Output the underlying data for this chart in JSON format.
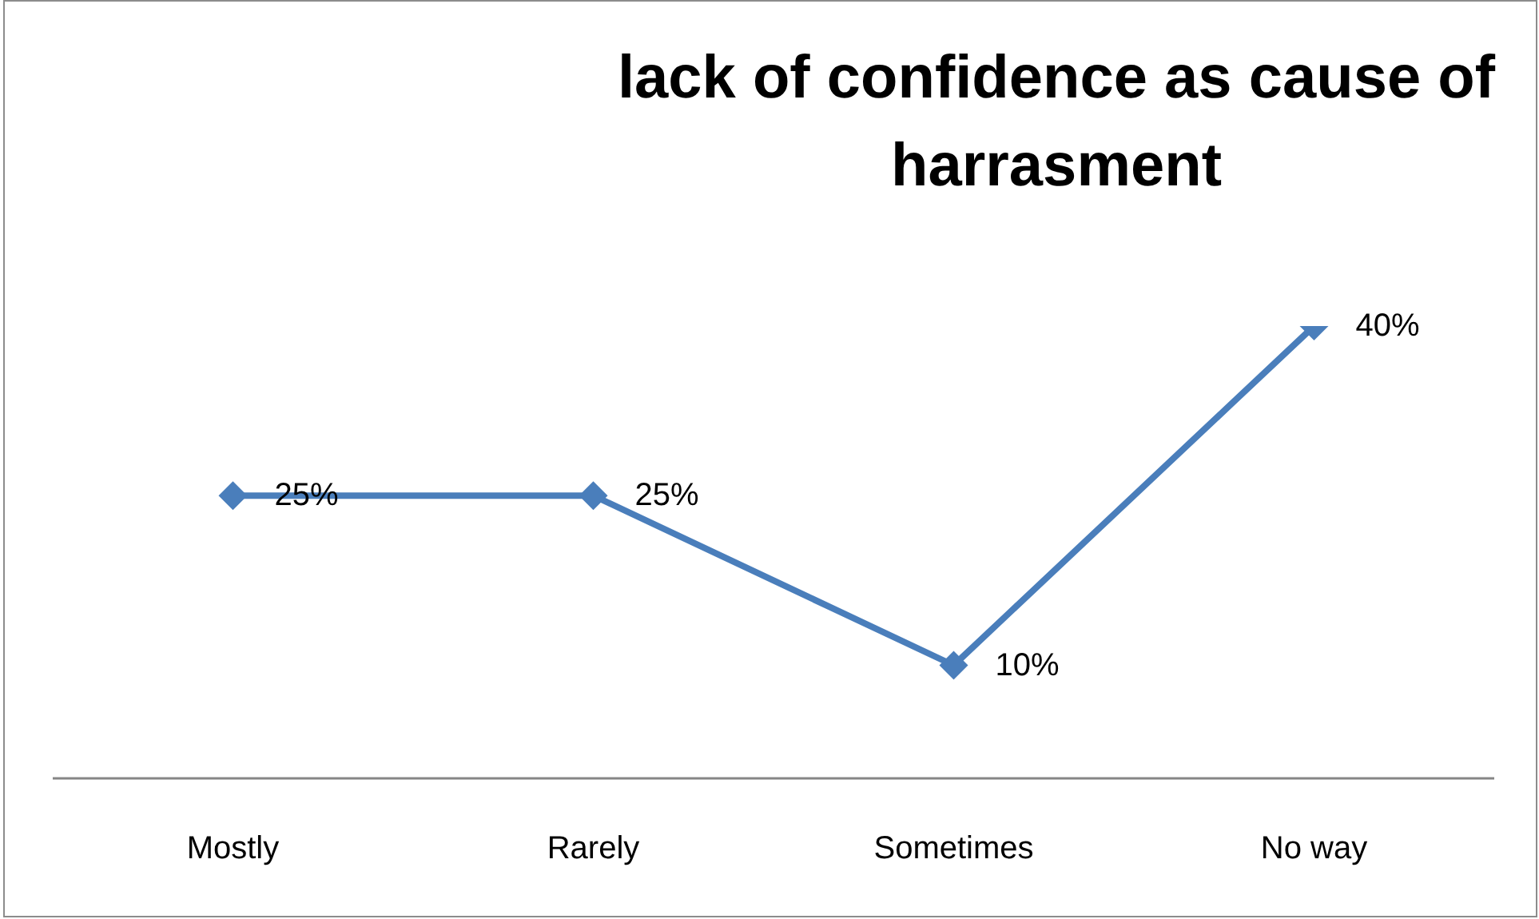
{
  "chart_data": {
    "type": "line",
    "title": "lack of confidence as cause of harrasment",
    "categories": [
      "Mostly",
      "Rarely",
      "Sometimes",
      "No way"
    ],
    "values": [
      25,
      25,
      10,
      40
    ],
    "color": "#4a7ebb",
    "value_labels": [
      "25%",
      "25%",
      "10%",
      "40%"
    ],
    "marker": "diamond",
    "line_style": "solid",
    "tick_labels": "x"
  }
}
